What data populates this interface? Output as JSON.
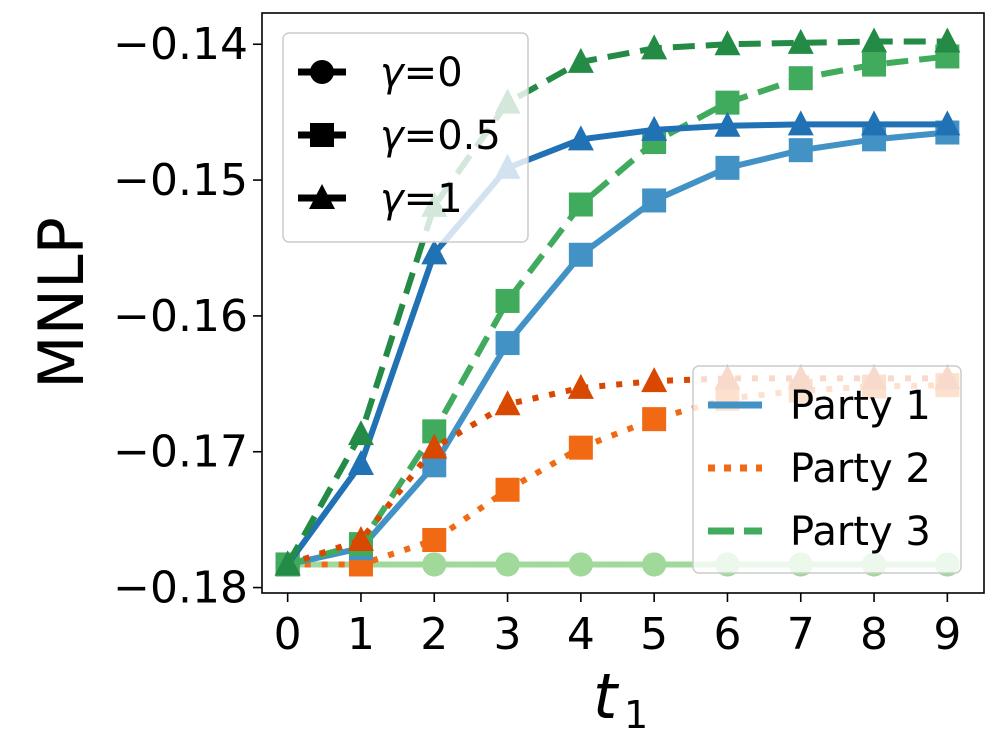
{
  "chart_data": {
    "type": "line",
    "xlabel": "t",
    "xlabel_subscript": "1",
    "ylabel": "MNLP",
    "x": [
      0,
      1,
      2,
      3,
      4,
      5,
      6,
      7,
      8,
      9
    ],
    "x_ticks": [
      "0",
      "1",
      "2",
      "3",
      "4",
      "5",
      "6",
      "7",
      "8",
      "9"
    ],
    "y_ticks": [
      {
        "value": -0.18,
        "label": "−0.18"
      },
      {
        "value": -0.17,
        "label": "−0.17"
      },
      {
        "value": -0.16,
        "label": "−0.16"
      },
      {
        "value": -0.15,
        "label": "−0.15"
      },
      {
        "value": -0.14,
        "label": "−0.14"
      }
    ],
    "xlim": [
      -0.35,
      9.5
    ],
    "ylim": [
      -0.1804,
      -0.1377
    ],
    "grid": false,
    "series": [
      {
        "party": "Party 1",
        "gamma": "0",
        "color": "#a1d99b",
        "linestyle": "solid",
        "marker": "circle",
        "values": [
          -0.1783,
          -0.1783,
          -0.1783,
          -0.1783,
          -0.1783,
          -0.1783,
          -0.1783,
          -0.1783,
          -0.1783,
          -0.1783
        ]
      },
      {
        "party": "Party 2",
        "gamma": "0",
        "color": "#a1d99b",
        "linestyle": "dotted",
        "marker": "circle",
        "values": [
          -0.1783,
          -0.1783,
          -0.1783,
          -0.1783,
          -0.1783,
          -0.1783,
          -0.1783,
          -0.1783,
          -0.1783,
          -0.1783
        ]
      },
      {
        "party": "Party 3",
        "gamma": "0",
        "color": "#a1d99b",
        "linestyle": "dashed",
        "marker": "circle",
        "values": [
          -0.1783,
          -0.1783,
          -0.1783,
          -0.1783,
          -0.1783,
          -0.1783,
          -0.1783,
          -0.1783,
          -0.1783,
          -0.1783
        ]
      },
      {
        "party": "Party 2",
        "gamma": "0.5",
        "color": "#f16913",
        "linestyle": "dotted",
        "marker": "square",
        "values": [
          -0.1783,
          -0.1783,
          -0.1765,
          -0.1728,
          -0.1697,
          -0.1676,
          -0.1661,
          -0.1655,
          -0.1652,
          -0.1651
        ]
      },
      {
        "party": "Party 1",
        "gamma": "0.5",
        "color": "#4292c6",
        "linestyle": "solid",
        "marker": "square",
        "values": [
          -0.1783,
          -0.1771,
          -0.171,
          -0.162,
          -0.1555,
          -0.1515,
          -0.1491,
          -0.1478,
          -0.147,
          -0.1465
        ]
      },
      {
        "party": "Party 3",
        "gamma": "0.5",
        "color": "#41ab5d",
        "linestyle": "dashed",
        "marker": "square",
        "values": [
          -0.1783,
          -0.1768,
          -0.1685,
          -0.1589,
          -0.1518,
          -0.1472,
          -0.1443,
          -0.1425,
          -0.1415,
          -0.1409
        ]
      },
      {
        "party": "Party 2",
        "gamma": "1",
        "color": "#d94801",
        "linestyle": "dotted",
        "marker": "triangle",
        "values": [
          -0.1783,
          -0.1765,
          -0.1697,
          -0.1665,
          -0.1653,
          -0.1648,
          -0.1646,
          -0.1646,
          -0.1646,
          -0.1646
        ]
      },
      {
        "party": "Party 1",
        "gamma": "1",
        "color": "#2171b5",
        "linestyle": "solid",
        "marker": "triangle",
        "values": [
          -0.1783,
          -0.1709,
          -0.1554,
          -0.1491,
          -0.147,
          -0.1463,
          -0.146,
          -0.1459,
          -0.1459,
          -0.1459
        ]
      },
      {
        "party": "Party 3",
        "gamma": "1",
        "color": "#238b45",
        "linestyle": "dashed",
        "marker": "triangle",
        "values": [
          -0.1783,
          -0.1687,
          -0.1519,
          -0.1443,
          -0.1413,
          -0.1403,
          -0.14,
          -0.1399,
          -0.1398,
          -0.1398
        ]
      }
    ],
    "legend_markers": {
      "placement": "upper-left",
      "entries": [
        {
          "symbol": "γ",
          "value": "=0",
          "marker": "circle"
        },
        {
          "symbol": "γ",
          "value": "=0.5",
          "marker": "square"
        },
        {
          "symbol": "γ",
          "value": "=1",
          "marker": "triangle"
        }
      ]
    },
    "legend_parties": {
      "placement": "lower-right",
      "entries": [
        {
          "label": "Party 1",
          "color": "#4292c6",
          "linestyle": "solid"
        },
        {
          "label": "Party 2",
          "color": "#f16913",
          "linestyle": "dotted"
        },
        {
          "label": "Party 3",
          "color": "#41ab5d",
          "linestyle": "dashed"
        }
      ]
    }
  }
}
